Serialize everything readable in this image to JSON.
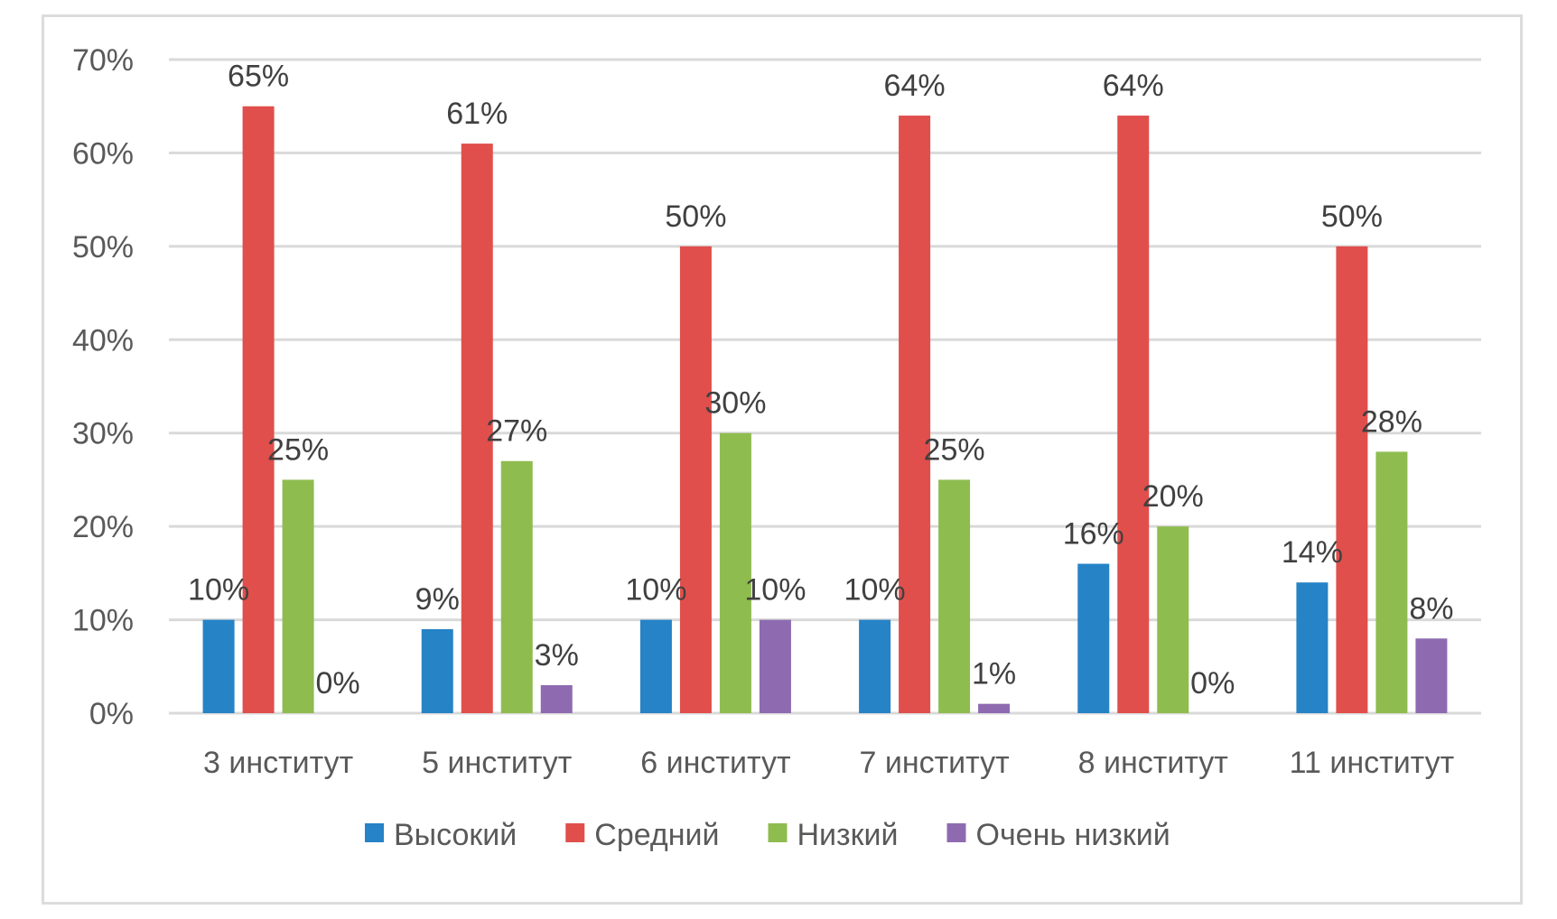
{
  "chart_data": {
    "type": "bar",
    "title": "",
    "xlabel": "",
    "ylabel": "",
    "ylim": [
      0,
      0.7
    ],
    "y_ticks": [
      0,
      0.1,
      0.2,
      0.3,
      0.4,
      0.5,
      0.6,
      0.7
    ],
    "y_tick_labels": [
      "0%",
      "10%",
      "20%",
      "30%",
      "40%",
      "50%",
      "60%",
      "70%"
    ],
    "grid": true,
    "legend_position": "bottom",
    "categories": [
      "3 институт",
      "5 институт",
      "6 институт",
      "7 институт",
      "8 институт",
      "11 институт"
    ],
    "series": [
      {
        "name": "Высокий",
        "color": "#2683c6",
        "values": [
          0.1,
          0.09,
          0.1,
          0.1,
          0.16,
          0.14
        ],
        "labels": [
          "10%",
          "9%",
          "10%",
          "10%",
          "16%",
          "14%"
        ]
      },
      {
        "name": "Средний",
        "color": "#e04f4c",
        "values": [
          0.65,
          0.61,
          0.5,
          0.64,
          0.64,
          0.5
        ],
        "labels": [
          "65%",
          "61%",
          "50%",
          "64%",
          "64%",
          "50%"
        ]
      },
      {
        "name": "Низкий",
        "color": "#8fbc4f",
        "values": [
          0.25,
          0.27,
          0.3,
          0.25,
          0.2,
          0.28
        ],
        "labels": [
          "25%",
          "27%",
          "30%",
          "25%",
          "20%",
          "28%"
        ]
      },
      {
        "name": "Очень низкий",
        "color": "#8e6bb0",
        "values": [
          0.0,
          0.03,
          0.1,
          0.01,
          0.0,
          0.08
        ],
        "labels": [
          "0%",
          "3%",
          "10%",
          "1%",
          "0%",
          "8%"
        ]
      }
    ]
  }
}
